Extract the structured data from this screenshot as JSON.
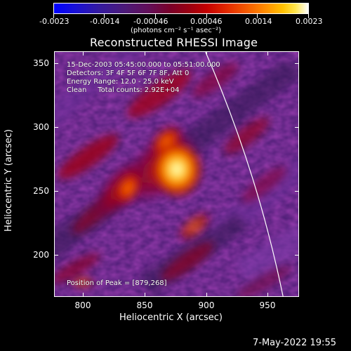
{
  "colorbar": {
    "ticks": [
      "-0.0023",
      "-0.0014",
      "-0.00046",
      "0.00046",
      "0.0014",
      "0.0023"
    ],
    "unit": "(photons cm⁻² s⁻¹ asec⁻²)"
  },
  "title": "Reconstructed RHESSI Image",
  "info": {
    "line1": "15-Dec-2003 05:45:00.000 to 05:51:00.000",
    "line2": "Detectors: 3F 4F 5F 6F 7F 8F, Att 0",
    "line3": "Energy Range: 12.0 - 25.0 keV",
    "line4": "Clean     Total counts: 2.92E+04"
  },
  "peak": "Position of Peak = [879,268]",
  "axes": {
    "x_ticks": [
      "800",
      "850",
      "900",
      "950"
    ],
    "y_ticks": [
      "350",
      "300",
      "250",
      "200"
    ],
    "xlabel": "Heliocentric X (arcsec)",
    "ylabel": "Heliocentric Y (arcsec)",
    "xlim": [
      778,
      972
    ],
    "ylim": [
      165,
      360
    ]
  },
  "timestamp": "7-May-2022 19:55"
}
